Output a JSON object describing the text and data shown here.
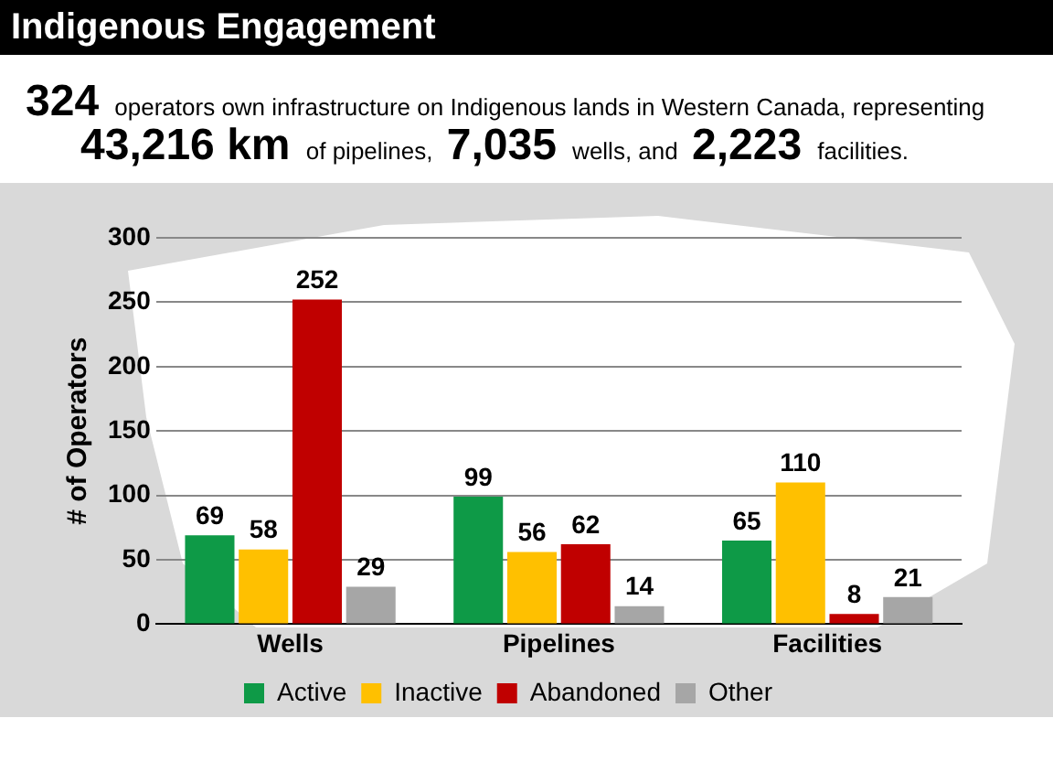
{
  "chart_data": {
    "type": "bar",
    "title": "Indigenous Engagement",
    "subtitle": "324 operators own infrastructure on Indigenous lands in Western Canada, representing",
    "annotations": [
      "43,216 km of pipelines, 7,035 wells, and 2,223 facilities."
    ],
    "categories": [
      "Wells",
      "Pipelines",
      "Facilities"
    ],
    "ylabel": "# of Operators",
    "series": [
      {
        "name": "Active",
        "color": "#0e9a47",
        "values": [
          69,
          99,
          65
        ]
      },
      {
        "name": "Inactive",
        "color": "#ffc000",
        "values": [
          58,
          56,
          110
        ]
      },
      {
        "name": "Abandoned",
        "color": "#c00000",
        "values": [
          252,
          62,
          8
        ]
      },
      {
        "name": "Other",
        "color": "#a6a6a6",
        "values": [
          29,
          14,
          21
        ]
      }
    ],
    "ylim": [
      0,
      300
    ],
    "yticks": [
      0,
      50,
      100,
      150,
      200,
      250,
      300
    ],
    "grid": "y",
    "legend": "bottom",
    "data_labels": true
  }
}
